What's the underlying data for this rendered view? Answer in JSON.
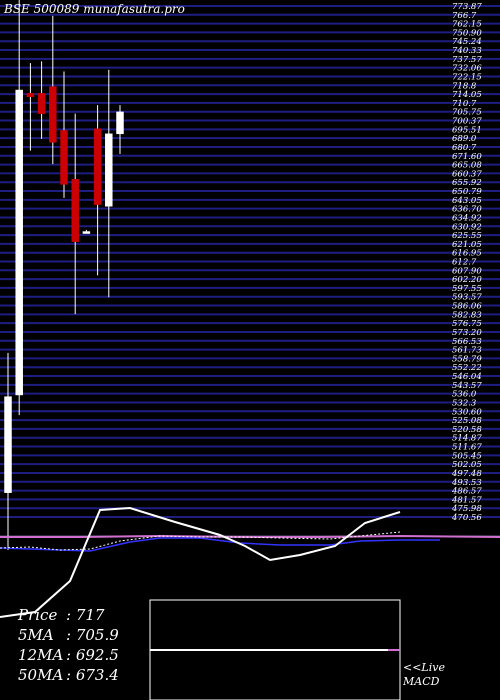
{
  "title": "BSE 500089 munafasutra.pro",
  "stats": [
    {
      "label": "Price",
      "value": ": 717"
    },
    {
      "label": "5MA",
      "value": ": 705.9"
    },
    {
      "label": "12MA",
      "value": ": 692.5"
    },
    {
      "label": "50MA",
      "value": ": 673.4"
    }
  ],
  "live_label": "<<Live",
  "macd_label": "MACD",
  "colors": {
    "background": "#000000",
    "grid": "#1e1e82",
    "bull": "#ffffff",
    "bear": "#cc0000",
    "text": "#ffffff",
    "ma_white": "#ffffff",
    "ma_blue": "#3333ff",
    "ma_pink": "#d070d0"
  },
  "chart_data": {
    "type": "candlestick",
    "price_axis_labels": [
      "773.87",
      "766.7",
      "762.15",
      "750.90",
      "745.24",
      "740.33",
      "737.57",
      "732.06",
      "722.15",
      "718.8",
      "714.05",
      "710.7",
      "705.75",
      "700.37",
      "695.51",
      "689.0",
      "680.7",
      "671.60",
      "665.08",
      "660.37",
      "655.92",
      "650.79",
      "643.05",
      "636.70",
      "634.92",
      "630.92",
      "625.55",
      "621.05",
      "616.95",
      "612.7",
      "607.90",
      "602.20",
      "597.55",
      "593.57",
      "586.06",
      "582.83",
      "576.75",
      "573.20",
      "566.53",
      "561.73",
      "558.79",
      "552.22",
      "546.04",
      "543.57",
      "536.0",
      "532.3",
      "530.60",
      "525.08",
      "520.58",
      "514.87",
      "511.67",
      "505.45",
      "502.05",
      "497.48",
      "493.53",
      "486.57",
      "481.57",
      "475.98",
      "470.56"
    ],
    "candles": [
      {
        "open": 485,
        "high": 568,
        "low": 451,
        "close": 542
      },
      {
        "open": 543,
        "high": 780,
        "low": 531,
        "close": 724
      },
      {
        "open": 722,
        "high": 740,
        "low": 688,
        "close": 720
      },
      {
        "open": 722,
        "high": 741,
        "low": 695,
        "close": 710
      },
      {
        "open": 726,
        "high": 768,
        "low": 680,
        "close": 693
      },
      {
        "open": 700,
        "high": 735,
        "low": 660,
        "close": 668
      },
      {
        "open": 671,
        "high": 710,
        "low": 591,
        "close": 634
      },
      {
        "open": 640,
        "high": 641,
        "low": 639,
        "close": 640
      },
      {
        "open": 701,
        "high": 715,
        "low": 614,
        "close": 656
      },
      {
        "open": 655,
        "high": 736,
        "low": 601,
        "close": 698
      },
      {
        "open": 698,
        "high": 715,
        "low": 686,
        "close": 711
      }
    ]
  }
}
